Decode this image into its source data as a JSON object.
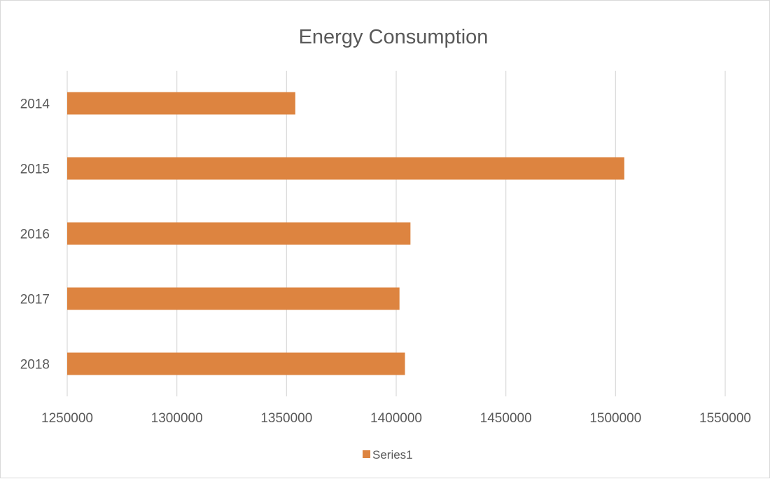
{
  "chart_data": {
    "type": "bar",
    "orientation": "horizontal",
    "title": "Energy Consumption",
    "categories": [
      "2014",
      "2015",
      "2016",
      "2017",
      "2018"
    ],
    "series": [
      {
        "name": "Series1",
        "color": "#dd8440",
        "values": [
          1354000,
          1504000,
          1406500,
          1401500,
          1404000
        ]
      }
    ],
    "xlim": [
      1250000,
      1550000
    ],
    "x_ticks": [
      "1250000",
      "1300000",
      "1350000",
      "1400000",
      "1450000",
      "1500000",
      "1550000"
    ],
    "grid": "vertical",
    "legend_position": "bottom"
  }
}
